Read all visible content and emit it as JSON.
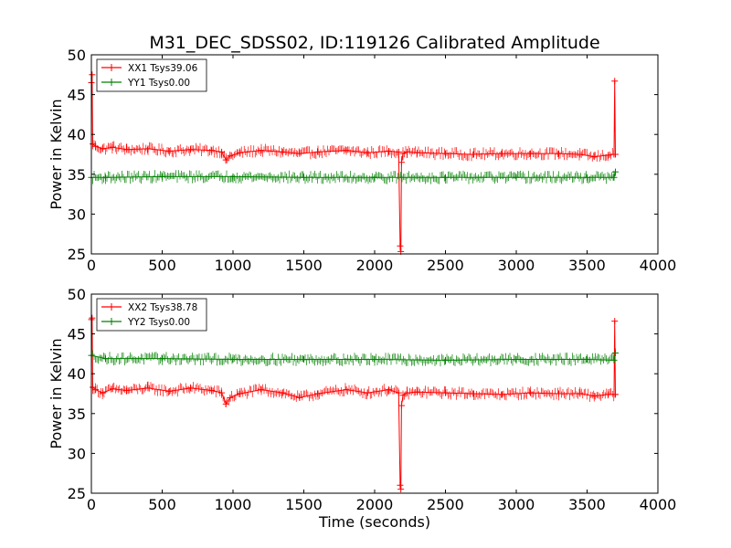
{
  "chart_data": [
    {
      "type": "line",
      "title": "M31_DEC_SDSS02, ID:119126 Calibrated Amplitude",
      "xlabel": "",
      "ylabel": "Power in Kelvin",
      "xlim": [
        0,
        4000
      ],
      "ylim": [
        25,
        50
      ],
      "xticks": [
        "0",
        "500",
        "1000",
        "1500",
        "2000",
        "2500",
        "3000",
        "3500",
        "4000"
      ],
      "yticks": [
        "25",
        "30",
        "35",
        "40",
        "45",
        "50"
      ],
      "grid": false,
      "legend_position": "top-left",
      "series": [
        {
          "name": "XX1 Tsys39.06",
          "color": "#ff0000",
          "marker": "plus",
          "x": [
            0,
            5,
            10,
            30,
            80,
            150,
            250,
            400,
            550,
            700,
            850,
            920,
            950,
            980,
            1050,
            1200,
            1350,
            1470,
            1600,
            1800,
            1950,
            2100,
            2170,
            2180,
            2185,
            2190,
            2200,
            2230,
            2300,
            2500,
            2700,
            2900,
            3100,
            3300,
            3450,
            3550,
            3650,
            3690,
            3695,
            3700
          ],
          "y": [
            46.5,
            47.5,
            38.8,
            38.5,
            38.2,
            38.4,
            38.1,
            38.2,
            37.9,
            38.1,
            38.0,
            37.8,
            36.8,
            37.3,
            37.7,
            38.0,
            37.8,
            37.6,
            37.8,
            38.0,
            37.7,
            37.9,
            37.8,
            26.0,
            25.3,
            36.5,
            37.6,
            37.8,
            37.7,
            37.6,
            37.5,
            37.6,
            37.6,
            37.6,
            37.5,
            37.2,
            37.4,
            37.5,
            46.7,
            37.5
          ]
        },
        {
          "name": "YY1 Tsys0.00",
          "color": "#008000",
          "marker": "plus",
          "x": [
            0,
            100,
            500,
            1000,
            1500,
            2000,
            2500,
            3000,
            3500,
            3690,
            3700
          ],
          "y": [
            34.6,
            34.6,
            34.7,
            34.7,
            34.6,
            34.6,
            34.6,
            34.6,
            34.6,
            34.6,
            35.3
          ]
        }
      ]
    },
    {
      "type": "line",
      "title": "",
      "xlabel": "Time (seconds)",
      "ylabel": "Power in Kelvin",
      "xlim": [
        0,
        4000
      ],
      "ylim": [
        25,
        50
      ],
      "xticks": [
        "0",
        "500",
        "1000",
        "1500",
        "2000",
        "2500",
        "3000",
        "3500",
        "4000"
      ],
      "yticks": [
        "25",
        "30",
        "35",
        "40",
        "45",
        "50"
      ],
      "grid": false,
      "legend_position": "top-left",
      "series": [
        {
          "name": "XX2 Tsys38.78",
          "color": "#ff0000",
          "marker": "plus",
          "x": [
            0,
            5,
            10,
            30,
            80,
            150,
            250,
            400,
            550,
            700,
            850,
            920,
            950,
            980,
            1050,
            1200,
            1350,
            1470,
            1600,
            1800,
            1950,
            2100,
            2170,
            2180,
            2185,
            2190,
            2200,
            2230,
            2300,
            2500,
            2700,
            2900,
            3100,
            3300,
            3450,
            3550,
            3650,
            3690,
            3695,
            3700
          ],
          "y": [
            46.8,
            47.0,
            38.3,
            38.0,
            37.6,
            38.1,
            37.9,
            38.2,
            37.8,
            38.2,
            37.9,
            37.6,
            36.2,
            37.0,
            37.5,
            38.0,
            37.6,
            37.0,
            37.5,
            38.0,
            37.6,
            38.0,
            37.6,
            26.0,
            25.5,
            36.0,
            37.3,
            37.6,
            37.7,
            37.6,
            37.5,
            37.4,
            37.6,
            37.5,
            37.5,
            37.2,
            37.4,
            37.4,
            46.6,
            37.4
          ]
        },
        {
          "name": "YY2 Tsys0.00",
          "color": "#008000",
          "marker": "plus",
          "x": [
            0,
            100,
            500,
            1000,
            1500,
            2000,
            2500,
            3000,
            3500,
            3690,
            3700
          ],
          "y": [
            42.3,
            41.9,
            41.9,
            41.8,
            41.8,
            41.8,
            41.7,
            41.8,
            41.8,
            41.7,
            42.6
          ]
        }
      ]
    }
  ]
}
